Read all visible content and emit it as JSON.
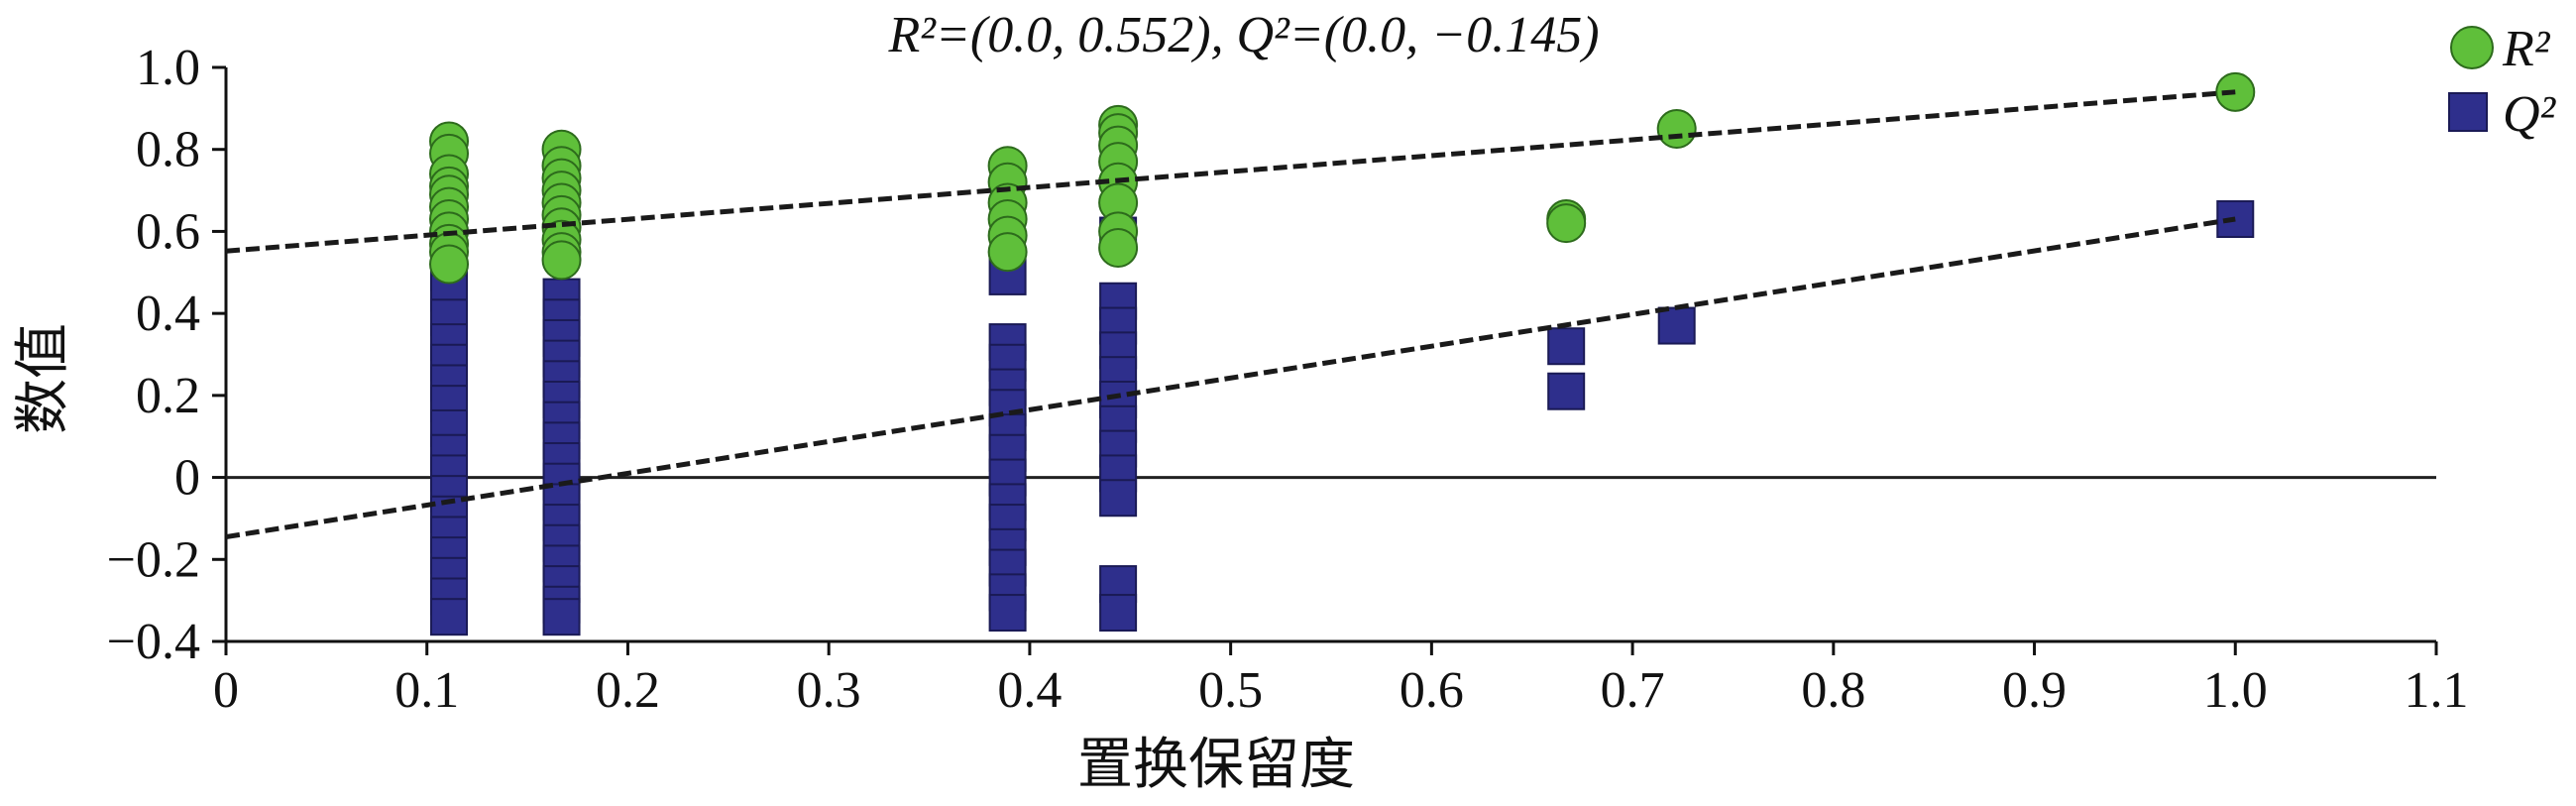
{
  "chart_data": {
    "type": "scatter",
    "title": "R²=(0.0, 0.552), Q²=(0.0, −0.145)",
    "xlabel": "置换保留度",
    "ylabel": "数值",
    "xlim": [
      0,
      1.1
    ],
    "ylim": [
      -0.4,
      1.0
    ],
    "x_ticks": [
      "0",
      "0.1",
      "0.2",
      "0.3",
      "0.4",
      "0.5",
      "0.6",
      "0.7",
      "0.8",
      "0.9",
      "1.0",
      "1.1"
    ],
    "y_ticks": [
      "1.0",
      "0.8",
      "0.6",
      "0.4",
      "0.2",
      "0",
      "−0.2",
      "−0.4"
    ],
    "legend_position": "top-right",
    "grid": false,
    "reference_line_y": 0,
    "series": [
      {
        "name": "R²",
        "marker": "circle",
        "color": "#5fbf3a",
        "points": [
          {
            "x": 0.111,
            "y": 0.82
          },
          {
            "x": 0.111,
            "y": 0.79
          },
          {
            "x": 0.111,
            "y": 0.74
          },
          {
            "x": 0.111,
            "y": 0.71
          },
          {
            "x": 0.111,
            "y": 0.69
          },
          {
            "x": 0.111,
            "y": 0.66
          },
          {
            "x": 0.111,
            "y": 0.63
          },
          {
            "x": 0.111,
            "y": 0.6
          },
          {
            "x": 0.111,
            "y": 0.57
          },
          {
            "x": 0.111,
            "y": 0.55
          },
          {
            "x": 0.111,
            "y": 0.52
          },
          {
            "x": 0.167,
            "y": 0.8
          },
          {
            "x": 0.167,
            "y": 0.76
          },
          {
            "x": 0.167,
            "y": 0.73
          },
          {
            "x": 0.167,
            "y": 0.7
          },
          {
            "x": 0.167,
            "y": 0.67
          },
          {
            "x": 0.167,
            "y": 0.64
          },
          {
            "x": 0.167,
            "y": 0.61
          },
          {
            "x": 0.167,
            "y": 0.58
          },
          {
            "x": 0.167,
            "y": 0.55
          },
          {
            "x": 0.167,
            "y": 0.53
          },
          {
            "x": 0.389,
            "y": 0.76
          },
          {
            "x": 0.389,
            "y": 0.72
          },
          {
            "x": 0.389,
            "y": 0.67
          },
          {
            "x": 0.389,
            "y": 0.63
          },
          {
            "x": 0.389,
            "y": 0.59
          },
          {
            "x": 0.389,
            "y": 0.55
          },
          {
            "x": 0.444,
            "y": 0.86
          },
          {
            "x": 0.444,
            "y": 0.84
          },
          {
            "x": 0.444,
            "y": 0.81
          },
          {
            "x": 0.444,
            "y": 0.77
          },
          {
            "x": 0.444,
            "y": 0.72
          },
          {
            "x": 0.444,
            "y": 0.67
          },
          {
            "x": 0.444,
            "y": 0.6
          },
          {
            "x": 0.444,
            "y": 0.56
          },
          {
            "x": 0.667,
            "y": 0.63
          },
          {
            "x": 0.667,
            "y": 0.62
          },
          {
            "x": 0.722,
            "y": 0.85
          },
          {
            "x": 1.0,
            "y": 0.94
          }
        ]
      },
      {
        "name": "Q²",
        "marker": "square",
        "color": "#2e2f8c",
        "points": [
          {
            "x": 0.111,
            "y": 0.61
          },
          {
            "x": 0.111,
            "y": 0.56
          },
          {
            "x": 0.111,
            "y": 0.5
          },
          {
            "x": 0.111,
            "y": 0.45
          },
          {
            "x": 0.111,
            "y": 0.39
          },
          {
            "x": 0.111,
            "y": 0.33
          },
          {
            "x": 0.111,
            "y": 0.28
          },
          {
            "x": 0.111,
            "y": 0.23
          },
          {
            "x": 0.111,
            "y": 0.18
          },
          {
            "x": 0.111,
            "y": 0.12
          },
          {
            "x": 0.111,
            "y": 0.06
          },
          {
            "x": 0.111,
            "y": 0.01
          },
          {
            "x": 0.111,
            "y": -0.04
          },
          {
            "x": 0.111,
            "y": -0.09
          },
          {
            "x": 0.111,
            "y": -0.14
          },
          {
            "x": 0.111,
            "y": -0.19
          },
          {
            "x": 0.111,
            "y": -0.24
          },
          {
            "x": 0.111,
            "y": -0.29
          },
          {
            "x": 0.111,
            "y": -0.34
          },
          {
            "x": 0.167,
            "y": 0.44
          },
          {
            "x": 0.167,
            "y": 0.39
          },
          {
            "x": 0.167,
            "y": 0.34
          },
          {
            "x": 0.167,
            "y": 0.29
          },
          {
            "x": 0.167,
            "y": 0.24
          },
          {
            "x": 0.167,
            "y": 0.19
          },
          {
            "x": 0.167,
            "y": 0.14
          },
          {
            "x": 0.167,
            "y": 0.09
          },
          {
            "x": 0.167,
            "y": 0.04
          },
          {
            "x": 0.167,
            "y": -0.01
          },
          {
            "x": 0.167,
            "y": -0.06
          },
          {
            "x": 0.167,
            "y": -0.11
          },
          {
            "x": 0.167,
            "y": -0.16
          },
          {
            "x": 0.167,
            "y": -0.21
          },
          {
            "x": 0.167,
            "y": -0.26
          },
          {
            "x": 0.167,
            "y": -0.31
          },
          {
            "x": 0.167,
            "y": -0.34
          },
          {
            "x": 0.389,
            "y": 0.49
          },
          {
            "x": 0.389,
            "y": 0.33
          },
          {
            "x": 0.389,
            "y": 0.28
          },
          {
            "x": 0.389,
            "y": 0.22
          },
          {
            "x": 0.389,
            "y": 0.17
          },
          {
            "x": 0.389,
            "y": 0.11
          },
          {
            "x": 0.389,
            "y": 0.06
          },
          {
            "x": 0.389,
            "y": 0.0
          },
          {
            "x": 0.389,
            "y": -0.06
          },
          {
            "x": 0.389,
            "y": -0.11
          },
          {
            "x": 0.389,
            "y": -0.17
          },
          {
            "x": 0.389,
            "y": -0.22
          },
          {
            "x": 0.389,
            "y": -0.28
          },
          {
            "x": 0.389,
            "y": -0.33
          },
          {
            "x": 0.444,
            "y": 0.59
          },
          {
            "x": 0.444,
            "y": 0.43
          },
          {
            "x": 0.444,
            "y": 0.37
          },
          {
            "x": 0.444,
            "y": 0.31
          },
          {
            "x": 0.444,
            "y": 0.25
          },
          {
            "x": 0.444,
            "y": 0.19
          },
          {
            "x": 0.444,
            "y": 0.13
          },
          {
            "x": 0.444,
            "y": 0.07
          },
          {
            "x": 0.444,
            "y": 0.01
          },
          {
            "x": 0.444,
            "y": -0.05
          },
          {
            "x": 0.444,
            "y": -0.26
          },
          {
            "x": 0.444,
            "y": -0.33
          },
          {
            "x": 0.667,
            "y": 0.32
          },
          {
            "x": 0.667,
            "y": 0.21
          },
          {
            "x": 0.722,
            "y": 0.37
          },
          {
            "x": 1.0,
            "y": 0.63
          }
        ]
      }
    ],
    "regression_lines": [
      {
        "series": "R²",
        "x": [
          0.0,
          1.0
        ],
        "y": [
          0.552,
          0.94
        ]
      },
      {
        "series": "Q²",
        "x": [
          0.0,
          1.0
        ],
        "y": [
          -0.145,
          0.63
        ]
      }
    ]
  }
}
